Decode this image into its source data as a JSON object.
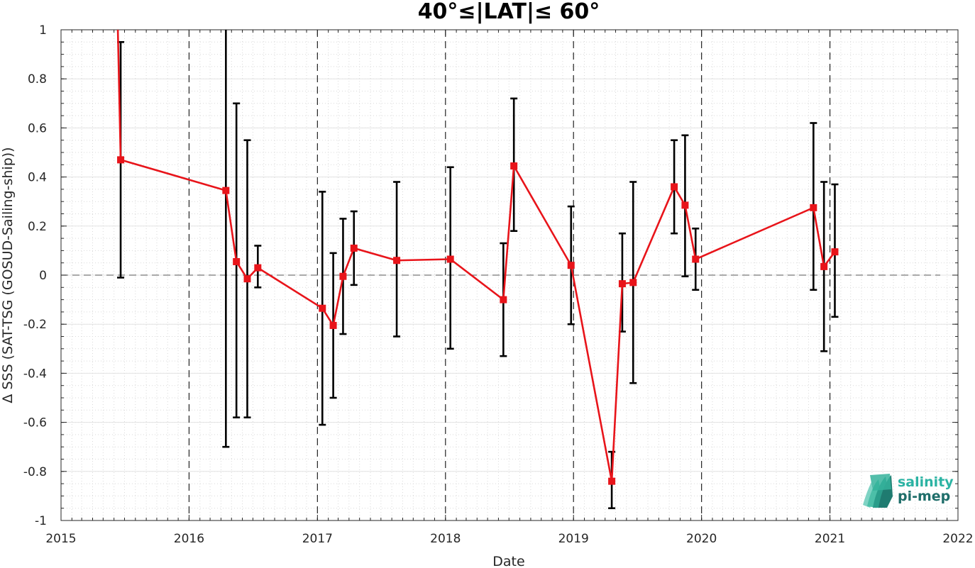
{
  "chart_data": {
    "type": "line",
    "title": "40°≤|LAT|≤ 60°",
    "xlabel": "Date",
    "ylabel": "Δ SSS (SAT-TSG (GOSUD-Sailing-ship))",
    "xlim": [
      "2015-01-01",
      "2022-01-01"
    ],
    "ylim": [
      -1,
      1
    ],
    "x_tick_labels": [
      "2015",
      "2016",
      "2017",
      "2018",
      "2019",
      "2020",
      "2021",
      "2022"
    ],
    "y_tick_labels": [
      "1",
      "0.8",
      "0.6",
      "0.4",
      "0.2",
      "0",
      "-0.2",
      "-0.4",
      "-0.6",
      "-0.8",
      "-1"
    ],
    "y_ticks": [
      1,
      0.8,
      0.6,
      0.4,
      0.2,
      0,
      -0.2,
      -0.4,
      -0.6,
      -0.8,
      -1
    ],
    "grid": "minor dotted, yearly vertical dashed lines",
    "zero_line": 0,
    "series": [
      {
        "color": "#e8141a",
        "marker": "square",
        "line_start": {
          "x": "2015-06-12",
          "y": 1.0
        },
        "points": [
          {
            "x": "2015-06-20",
            "y": 0.47,
            "err_low": -0.01,
            "err_high": 0.95
          },
          {
            "x": "2016-04-15",
            "y": 0.345,
            "err_low": -0.7,
            "err_high": 1.0
          },
          {
            "x": "2016-05-15",
            "y": 0.055,
            "err_low": -0.58,
            "err_high": 0.7
          },
          {
            "x": "2016-06-15",
            "y": -0.015,
            "err_low": -0.58,
            "err_high": 0.55
          },
          {
            "x": "2016-07-15",
            "y": 0.03,
            "err_low": -0.05,
            "err_high": 0.12
          },
          {
            "x": "2017-01-15",
            "y": -0.135,
            "err_low": -0.61,
            "err_high": 0.34
          },
          {
            "x": "2017-02-15",
            "y": -0.205,
            "err_low": -0.5,
            "err_high": 0.09
          },
          {
            "x": "2017-03-15",
            "y": -0.005,
            "err_low": -0.24,
            "err_high": 0.23
          },
          {
            "x": "2017-04-15",
            "y": 0.11,
            "err_low": -0.04,
            "err_high": 0.26
          },
          {
            "x": "2017-08-15",
            "y": 0.06,
            "err_low": -0.25,
            "err_high": 0.38
          },
          {
            "x": "2018-01-15",
            "y": 0.065,
            "err_low": -0.3,
            "err_high": 0.44
          },
          {
            "x": "2018-06-15",
            "y": -0.1,
            "err_low": -0.33,
            "err_high": 0.13
          },
          {
            "x": "2018-07-15",
            "y": 0.445,
            "err_low": 0.18,
            "err_high": 0.72
          },
          {
            "x": "2018-12-25",
            "y": 0.04,
            "err_low": -0.2,
            "err_high": 0.28
          },
          {
            "x": "2019-04-20",
            "y": -0.84,
            "err_low": -0.95,
            "err_high": -0.72
          },
          {
            "x": "2019-05-20",
            "y": -0.035,
            "err_low": -0.23,
            "err_high": 0.17
          },
          {
            "x": "2019-06-20",
            "y": -0.03,
            "err_low": -0.44,
            "err_high": 0.38
          },
          {
            "x": "2019-10-15",
            "y": 0.36,
            "err_low": 0.17,
            "err_high": 0.55
          },
          {
            "x": "2019-11-15",
            "y": 0.285,
            "err_low": -0.005,
            "err_high": 0.57
          },
          {
            "x": "2019-12-15",
            "y": 0.065,
            "err_low": -0.06,
            "err_high": 0.19
          },
          {
            "x": "2020-11-15",
            "y": 0.275,
            "err_low": -0.06,
            "err_high": 0.62
          },
          {
            "x": "2020-12-15",
            "y": 0.035,
            "err_low": -0.31,
            "err_high": 0.38
          },
          {
            "x": "2021-01-15",
            "y": 0.095,
            "err_low": -0.17,
            "err_high": 0.37
          }
        ]
      }
    ]
  },
  "logo": {
    "line1": "salinity",
    "line2": "pi-mep",
    "colors": [
      "#2bb3a3",
      "#1e6e6a"
    ]
  }
}
